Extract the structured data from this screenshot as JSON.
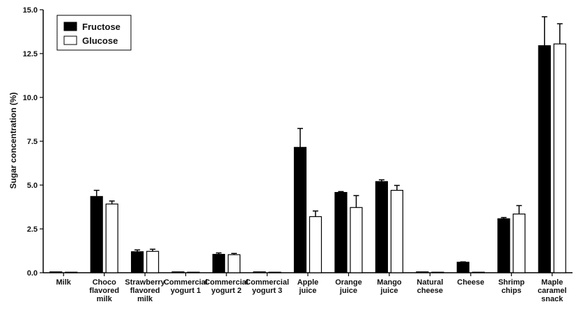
{
  "chart_data": {
    "type": "bar",
    "ylabel": "Sugar concentration (%)",
    "ylim": [
      0,
      15
    ],
    "yticks": [
      "0.0",
      "2.5",
      "5.0",
      "7.5",
      "10.0",
      "12.5",
      "15.0"
    ],
    "grid": false,
    "legend_position": "top-left",
    "categories": [
      [
        "Milk"
      ],
      [
        "Choco",
        "flavored",
        "milk"
      ],
      [
        "Strawberry",
        "flavored",
        "milk"
      ],
      [
        "Commercial",
        "yogurt 1"
      ],
      [
        "Commercial",
        "yogurt 2"
      ],
      [
        "Commercial",
        "yogurt 3"
      ],
      [
        "Apple",
        "juice"
      ],
      [
        "Orange",
        "juice"
      ],
      [
        "Mango",
        "juice"
      ],
      [
        "Natural",
        "cheese"
      ],
      [
        "Cheese"
      ],
      [
        "Shrimp",
        "chips"
      ],
      [
        "Maple",
        "caramel",
        "snack"
      ]
    ],
    "series": [
      {
        "name": "Fructose",
        "color": "#000000",
        "values": [
          0.05,
          4.35,
          1.2,
          0.05,
          1.05,
          0.05,
          7.15,
          4.58,
          5.2,
          0.05,
          0.6,
          3.08,
          12.95
        ],
        "errors": [
          0.0,
          0.35,
          0.1,
          0.0,
          0.08,
          0.0,
          1.08,
          0.05,
          0.1,
          0.0,
          0.02,
          0.07,
          1.65
        ]
      },
      {
        "name": "Glucose",
        "color": "#ffffff",
        "values": [
          0.03,
          3.92,
          1.22,
          0.03,
          1.03,
          0.03,
          3.2,
          3.72,
          4.7,
          0.03,
          0.03,
          3.35,
          13.05
        ],
        "errors": [
          0.0,
          0.17,
          0.12,
          0.0,
          0.07,
          0.0,
          0.32,
          0.68,
          0.28,
          0.0,
          0.0,
          0.48,
          1.15
        ]
      }
    ]
  }
}
